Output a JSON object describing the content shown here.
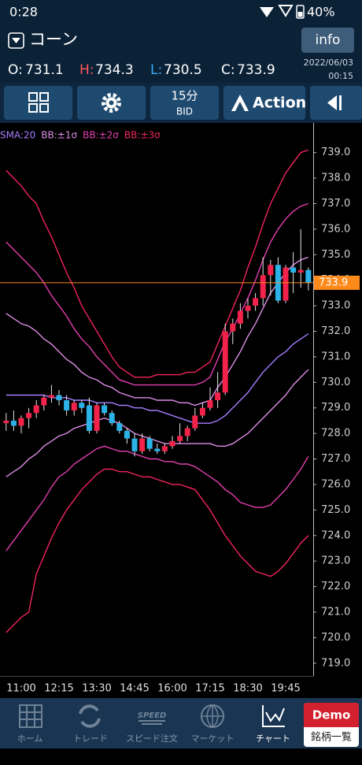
{
  "status_bar": {
    "time": "0:28",
    "battery": "40%"
  },
  "header": {
    "title": "コーン",
    "info_button": "info"
  },
  "quote": {
    "open_label": "O:",
    "open": 731.1,
    "high_label": "H:",
    "high": 734.3,
    "low_label": "L:",
    "low": 730.5,
    "close_label": "C:",
    "close": 733.9,
    "date": "2022/06/03",
    "time": "00:15"
  },
  "toolbar": {
    "timeframe": "15分",
    "price_type": "BID",
    "action": "Action"
  },
  "chart_data": {
    "type": "candlestick",
    "categories": [
      null,
      null,
      "11:00",
      null,
      null,
      null,
      null,
      "12:15",
      null,
      null,
      null,
      null,
      "13:30",
      null,
      null,
      null,
      null,
      "14:45",
      null,
      null,
      null,
      null,
      "16:00",
      null,
      null,
      null,
      null,
      "17:15",
      null,
      null,
      null,
      null,
      "18:30",
      null,
      null,
      null,
      null,
      "19:45",
      null,
      null,
      null
    ],
    "ohlc": [
      [
        728.4,
        728.8,
        728.1,
        728.5
      ],
      [
        728.5,
        728.9,
        728.1,
        728.3
      ],
      [
        728.3,
        728.7,
        728.0,
        728.6
      ],
      [
        728.6,
        729.0,
        728.2,
        728.8
      ],
      [
        728.8,
        729.3,
        728.6,
        729.1
      ],
      [
        729.1,
        729.5,
        728.9,
        729.4
      ],
      [
        729.4,
        729.9,
        729.2,
        729.5
      ],
      [
        729.5,
        729.7,
        729.1,
        729.3
      ],
      [
        729.3,
        729.5,
        728.7,
        728.9
      ],
      [
        728.9,
        729.3,
        728.7,
        729.2
      ],
      [
        729.2,
        729.3,
        728.8,
        729.0
      ],
      [
        729.1,
        729.4,
        728.0,
        728.1
      ],
      [
        728.1,
        729.2,
        728.0,
        729.1
      ],
      [
        729.1,
        729.2,
        728.7,
        728.8
      ],
      [
        728.8,
        728.9,
        728.3,
        728.4
      ],
      [
        728.4,
        728.5,
        728.0,
        728.1
      ],
      [
        728.1,
        728.2,
        727.6,
        727.8
      ],
      [
        727.8,
        728.0,
        727.1,
        727.3
      ],
      [
        727.3,
        728.0,
        727.2,
        727.8
      ],
      [
        727.8,
        727.9,
        727.3,
        727.4
      ],
      [
        727.4,
        727.6,
        727.2,
        727.3
      ],
      [
        727.3,
        727.6,
        727.2,
        727.5
      ],
      [
        727.5,
        727.9,
        727.4,
        727.7
      ],
      [
        727.7,
        728.4,
        727.6,
        727.9
      ],
      [
        727.9,
        728.3,
        727.7,
        728.2
      ],
      [
        728.2,
        729.0,
        728.1,
        728.7
      ],
      [
        728.7,
        729.2,
        728.6,
        729.0
      ],
      [
        729.0,
        729.8,
        728.9,
        729.3
      ],
      [
        729.3,
        730.4,
        729.0,
        729.6
      ],
      [
        729.6,
        732.3,
        729.5,
        732.0
      ],
      [
        732.0,
        732.5,
        731.5,
        732.3
      ],
      [
        732.3,
        733.1,
        732.1,
        732.8
      ],
      [
        732.8,
        733.3,
        732.5,
        733.0
      ],
      [
        733.0,
        733.5,
        732.8,
        733.3
      ],
      [
        733.3,
        734.9,
        733.0,
        734.2
      ],
      [
        734.2,
        734.8,
        733.4,
        734.6
      ],
      [
        734.6,
        734.9,
        733.1,
        733.2
      ],
      [
        733.2,
        734.6,
        733.1,
        734.5
      ],
      [
        734.5,
        735.1,
        733.5,
        734.3
      ],
      [
        734.3,
        736.0,
        733.7,
        734.4
      ],
      [
        734.4,
        734.5,
        733.6,
        733.9
      ]
    ],
    "up_color": "#f2224a",
    "down_color": "#2bb3e8",
    "wick_color": "#e6e6e6",
    "series": [
      {
        "name": "SMA:20",
        "color": "#a57dff",
        "values": [
          729.5,
          729.5,
          729.5,
          729.5,
          729.5,
          729.5,
          729.4,
          729.4,
          729.4,
          729.3,
          729.3,
          729.3,
          729.2,
          729.2,
          729.2,
          729.1,
          729.1,
          729.0,
          729.0,
          728.9,
          728.9,
          728.8,
          728.7,
          728.6,
          728.5,
          728.4,
          728.4,
          728.4,
          728.5,
          728.7,
          729.0,
          729.3,
          729.6,
          730.0,
          730.4,
          730.7,
          731.0,
          731.2,
          731.5,
          731.7,
          731.9
        ]
      },
      {
        "name": "BB:±1σ",
        "color": "#dd8de6",
        "upper": [
          732.7,
          732.5,
          732.3,
          732.2,
          732.0,
          731.7,
          731.5,
          731.2,
          730.9,
          730.7,
          730.4,
          730.2,
          730.1,
          729.9,
          729.8,
          729.6,
          729.5,
          729.4,
          729.4,
          729.4,
          729.3,
          729.3,
          729.3,
          729.2,
          729.2,
          729.1,
          729.2,
          729.3,
          729.8,
          730.2,
          730.7,
          731.2,
          731.8,
          732.3,
          732.9,
          733.5,
          733.9,
          734.3,
          734.6,
          734.8,
          734.9
        ],
        "lower": [
          726.3,
          726.5,
          726.7,
          727.0,
          727.2,
          727.5,
          727.7,
          727.9,
          728.0,
          728.2,
          728.3,
          728.4,
          728.5,
          728.6,
          728.5,
          728.4,
          728.2,
          728.0,
          727.9,
          727.8,
          727.7,
          727.6,
          727.6,
          727.6,
          727.6,
          727.6,
          727.6,
          727.6,
          727.5,
          727.5,
          727.6,
          727.8,
          728.0,
          728.3,
          728.6,
          728.9,
          729.2,
          729.5,
          729.9,
          730.2,
          730.5
        ]
      },
      {
        "name": "BB:±2σ",
        "color": "#e33fae",
        "upper": [
          735.5,
          735.2,
          734.9,
          734.6,
          734.3,
          733.9,
          733.4,
          733.0,
          732.6,
          732.1,
          731.7,
          731.4,
          731.0,
          730.7,
          730.4,
          730.1,
          730.0,
          729.9,
          729.9,
          729.9,
          729.9,
          729.9,
          729.9,
          729.9,
          729.9,
          729.9,
          730.0,
          730.2,
          730.9,
          731.6,
          732.1,
          732.7,
          733.3,
          734.0,
          734.8,
          735.5,
          736.0,
          736.4,
          736.7,
          736.9,
          737.0
        ],
        "lower": [
          723.4,
          723.8,
          724.2,
          724.6,
          725.0,
          725.4,
          725.9,
          726.3,
          726.5,
          726.8,
          727.0,
          727.2,
          727.4,
          727.5,
          727.4,
          727.3,
          727.3,
          727.2,
          727.1,
          727.0,
          727.0,
          726.9,
          726.9,
          726.8,
          726.8,
          726.7,
          726.5,
          726.3,
          726.1,
          725.8,
          725.6,
          725.3,
          725.2,
          725.1,
          725.1,
          725.2,
          725.5,
          725.8,
          726.2,
          726.6,
          727.1
        ]
      },
      {
        "name": "BB:±3σ",
        "color": "#f0245c",
        "upper": [
          738.3,
          738.0,
          737.7,
          737.3,
          737.0,
          736.3,
          735.7,
          735.0,
          734.3,
          733.7,
          733.0,
          732.5,
          732.0,
          731.5,
          731.0,
          730.6,
          730.4,
          730.2,
          730.2,
          730.2,
          730.3,
          730.3,
          730.3,
          730.3,
          730.4,
          730.4,
          730.6,
          730.8,
          731.5,
          732.2,
          732.9,
          733.6,
          734.5,
          735.3,
          736.2,
          737.0,
          737.6,
          738.2,
          738.6,
          739.0,
          739.1
        ],
        "lower": [
          720.2,
          720.5,
          720.8,
          721.0,
          722.5,
          723.2,
          723.9,
          724.5,
          725.0,
          725.4,
          725.8,
          726.1,
          726.4,
          726.6,
          726.6,
          726.5,
          726.5,
          726.4,
          726.3,
          726.3,
          726.2,
          726.1,
          726.0,
          726.0,
          725.9,
          725.8,
          725.4,
          725.0,
          724.5,
          724.0,
          723.6,
          723.2,
          722.9,
          722.6,
          722.5,
          722.4,
          722.6,
          722.9,
          723.3,
          723.7,
          724.0
        ]
      }
    ],
    "last_price": 733.9,
    "last_color": "#ff8a1c",
    "ylim": [
      718.5,
      740.1
    ],
    "yticks": [
      {
        "value": 719,
        "label": "719.0"
      },
      {
        "value": 720,
        "label": "720.0"
      },
      {
        "value": 721,
        "label": "721.0"
      },
      {
        "value": 722,
        "label": "722.0"
      },
      {
        "value": 723,
        "label": "723.0"
      },
      {
        "value": 724,
        "label": "724.0"
      },
      {
        "value": 725,
        "label": "725.0"
      },
      {
        "value": 726,
        "label": "726.0"
      },
      {
        "value": 727,
        "label": "727.0"
      },
      {
        "value": 728,
        "label": "728.0"
      },
      {
        "value": 729,
        "label": "729.0"
      },
      {
        "value": 730,
        "label": "730.0"
      },
      {
        "value": 731,
        "label": "731.0"
      },
      {
        "value": 732,
        "label": "732.0"
      },
      {
        "value": 733,
        "label": "733.0"
      },
      {
        "value": 734,
        "label": "734.0"
      },
      {
        "value": 735,
        "label": "735.0"
      },
      {
        "value": 736,
        "label": "736.0"
      },
      {
        "value": 737,
        "label": "737.0"
      },
      {
        "value": 738,
        "label": "738.0"
      },
      {
        "value": 739,
        "label": "739.0"
      }
    ]
  },
  "nav": {
    "items": [
      "ホーム",
      "トレード",
      "スピード注文",
      "マーケット",
      "チャート"
    ],
    "speed_icon": "SPEED",
    "demo": "Demo",
    "symbol_list": "銘柄一覧"
  }
}
